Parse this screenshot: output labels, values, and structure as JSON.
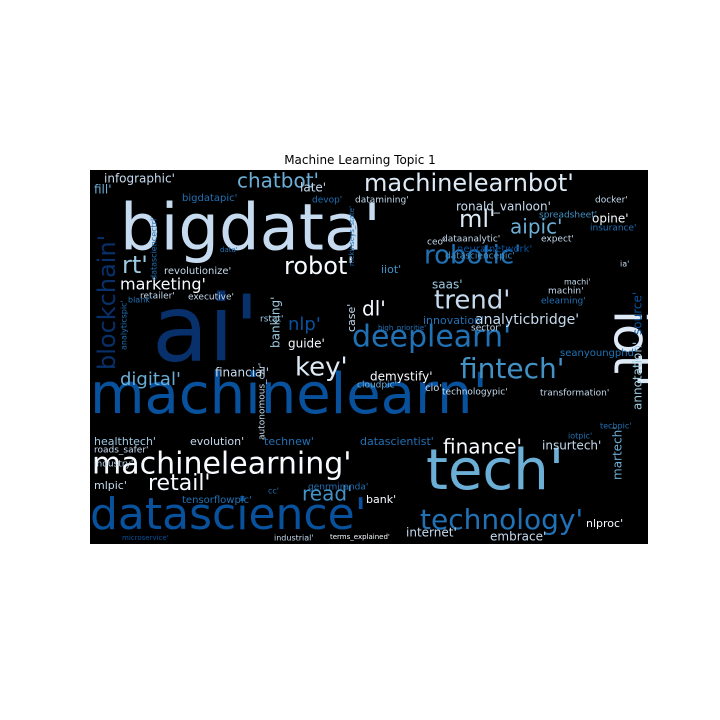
{
  "figure": {
    "title": "Machine Learning Topic 1"
  },
  "wordcloud": {
    "background": "#000000",
    "palette": [
      "#08306b",
      "#08519c",
      "#2171b5",
      "#4292c6",
      "#6baed6",
      "#9ecae1",
      "#c6dbef",
      "#deebf7",
      "#ffffff"
    ],
    "words": [
      {
        "text": "ai'",
        "color": "#08306b"
      },
      {
        "text": "machinelearn'",
        "color": "#08519c"
      },
      {
        "text": "bigdata'",
        "color": "#c6dbef"
      },
      {
        "text": "tech'",
        "color": "#6baed6"
      },
      {
        "text": "iot'",
        "color": "#deebf7"
      },
      {
        "text": "datascience'",
        "color": "#08519c"
      },
      {
        "text": "blockchain'",
        "color": "#08306b"
      },
      {
        "text": "machinelearning'",
        "color": "#f7fbff"
      },
      {
        "text": "machinelearnbot'",
        "color": "#deebf7"
      },
      {
        "text": "deeplearn'",
        "color": "#2171b5"
      },
      {
        "text": "robotic'",
        "color": "#2171b5"
      },
      {
        "text": "technology'",
        "color": "#2171b5"
      },
      {
        "text": "fintech'",
        "color": "#4292c6"
      },
      {
        "text": "robot'",
        "color": "#f7fbff"
      },
      {
        "text": "trend'",
        "color": "#c6dbef"
      },
      {
        "text": "ml'",
        "color": "#deebf7"
      },
      {
        "text": "rt'",
        "color": "#9ecae1"
      },
      {
        "text": "chatbot'",
        "color": "#6baed6"
      },
      {
        "text": "key'",
        "color": "#deebf7"
      },
      {
        "text": "aipic'",
        "color": "#6baed6"
      },
      {
        "text": "retail'",
        "color": "#f7fbff"
      },
      {
        "text": "finance'",
        "color": "#f7fbff"
      },
      {
        "text": "read'",
        "color": "#4292c6"
      },
      {
        "text": "marketing'",
        "color": "#f7fbff"
      },
      {
        "text": "digital'",
        "color": "#6baed6"
      },
      {
        "text": "dl'",
        "color": "#f7fbff"
      },
      {
        "text": "nlp'",
        "color": "#08519c"
      },
      {
        "text": "infographic'",
        "color": "#c6dbef"
      },
      {
        "text": "ronald_vanloon'",
        "color": "#c6dbef"
      },
      {
        "text": "analyticbridge'",
        "color": "#c6dbef"
      },
      {
        "text": "annotation'",
        "color": "#9ecae1"
      },
      {
        "text": "source'",
        "color": "#08519c"
      },
      {
        "text": "martech'",
        "color": "#6baed6"
      },
      {
        "text": "insurtech'",
        "color": "#c6dbef"
      },
      {
        "text": "internet'",
        "color": "#c6dbef"
      },
      {
        "text": "embrace'",
        "color": "#c6dbef"
      },
      {
        "text": "banking'",
        "color": "#9ecae1"
      },
      {
        "text": "late'",
        "color": "#c6dbef"
      },
      {
        "text": "saas'",
        "color": "#9ecae1"
      },
      {
        "text": "opine'",
        "color": "#f7fbff"
      },
      {
        "text": "demystify'",
        "color": "#f7fbff"
      },
      {
        "text": "financial'",
        "color": "#c6dbef"
      },
      {
        "text": "guide'",
        "color": "#f7fbff"
      },
      {
        "text": "case'",
        "color": "#c6dbef"
      },
      {
        "text": "innovation'",
        "color": "#2171b5"
      },
      {
        "text": "evolution'",
        "color": "#c6dbef"
      },
      {
        "text": "technew'",
        "color": "#2171b5"
      },
      {
        "text": "datascientist'",
        "color": "#2171b5"
      },
      {
        "text": "healthtech'",
        "color": "#9ecae1"
      },
      {
        "text": "mlpic'",
        "color": "#c6dbef"
      },
      {
        "text": "bank'",
        "color": "#f7fbff"
      },
      {
        "text": "nlproc'",
        "color": "#f7fbff"
      },
      {
        "text": "revolutionize'",
        "color": "#c6dbef"
      },
      {
        "text": "retailer'",
        "color": "#c6dbef"
      },
      {
        "text": "executive'",
        "color": "#c6dbef"
      },
      {
        "text": "rstat'",
        "color": "#9ecae1"
      },
      {
        "text": "cio'",
        "color": "#c6dbef"
      },
      {
        "text": "sector'",
        "color": "#c6dbef"
      },
      {
        "text": "transformation'",
        "color": "#c6dbef"
      },
      {
        "text": "technologypic'",
        "color": "#c6dbef"
      },
      {
        "text": "seanyoungphd'",
        "color": "#2171b5"
      },
      {
        "text": "cloudpic'",
        "color": "#6baed6"
      },
      {
        "text": "devop'",
        "color": "#2171b5"
      },
      {
        "text": "datamining'",
        "color": "#c6dbef"
      },
      {
        "text": "spreadsheet'",
        "color": "#4292c6"
      },
      {
        "text": "docker'",
        "color": "#c6dbef"
      },
      {
        "text": "insurance'",
        "color": "#2171b5"
      },
      {
        "text": "expect'",
        "color": "#c6dbef"
      },
      {
        "text": "dataanalytic'",
        "color": "#c6dbef"
      },
      {
        "text": "datasciencepic'",
        "color": "#4292c6"
      },
      {
        "text": "neuralnetwork'",
        "color": "#08519c"
      },
      {
        "text": "iiot'",
        "color": "#4292c6"
      },
      {
        "text": "machin'",
        "color": "#c6dbef"
      },
      {
        "text": "elearning'",
        "color": "#2171b5"
      },
      {
        "text": "machi'",
        "color": "#c6dbef"
      },
      {
        "text": "ceo'",
        "color": "#c6dbef"
      },
      {
        "text": "industry'",
        "color": "#c6dbef"
      },
      {
        "text": "bigdatapic'",
        "color": "#2171b5"
      },
      {
        "text": "tensorflowpic'",
        "color": "#2171b5"
      },
      {
        "text": "genrmiranda'",
        "color": "#2171b5"
      },
      {
        "text": "industrial'",
        "color": "#c6dbef"
      },
      {
        "text": "terms_explained'",
        "color": "#f7fbff"
      },
      {
        "text": "roads_safer'",
        "color": "#c6dbef"
      },
      {
        "text": "autonomous_car'",
        "color": "#c6dbef"
      },
      {
        "text": "mckinseys_state'",
        "color": "#2171b5"
      },
      {
        "text": "high_prioritie'",
        "color": "#2171b5"
      },
      {
        "text": "analyticspic'",
        "color": "#2171b5"
      },
      {
        "text": "datasciencectrl'",
        "color": "#2171b5"
      },
      {
        "text": "techpic'",
        "color": "#2171b5"
      },
      {
        "text": "iotpic'",
        "color": "#2171b5"
      },
      {
        "text": "blank'",
        "color": "#2171b5"
      },
      {
        "text": "fill'",
        "color": "#6baed6"
      },
      {
        "text": "microservice'",
        "color": "#08519c"
      },
      {
        "text": "ia'",
        "color": "#c6dbef"
      },
      {
        "text": "cc'",
        "color": "#2171b5"
      },
      {
        "text": "data'",
        "color": "#2171b5"
      }
    ]
  }
}
